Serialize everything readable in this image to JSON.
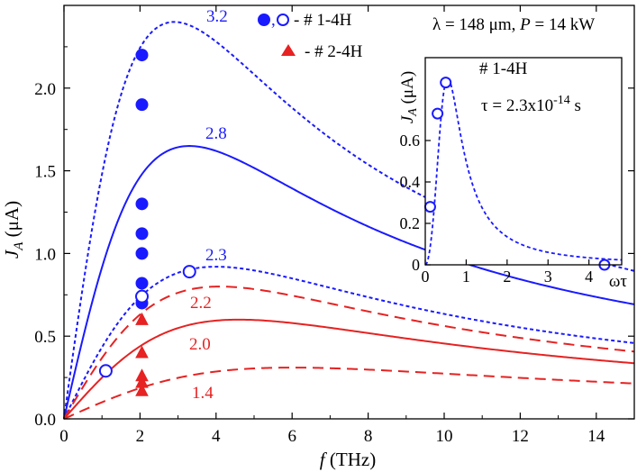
{
  "chart_data": [
    {
      "type": "line",
      "xlabel_italic": "f",
      "xlabel_rest": " (THz)",
      "ylabel_main": "J",
      "ylabel_sub": "A",
      "ylabel_unit": " (μA)",
      "xlim": [
        0,
        15
      ],
      "ylim": [
        0,
        2.5
      ],
      "xticks": [
        0,
        2,
        4,
        6,
        8,
        10,
        12,
        14
      ],
      "yticks": [
        0.0,
        0.5,
        1.0,
        1.5,
        2.0
      ],
      "ytick_labels": [
        "0.0",
        "0.5",
        "1.0",
        "1.5",
        "2.0"
      ],
      "condition_prefix": "λ = 148 μm, ",
      "condition_power_symbol": "P",
      "condition_power_value": " = 14 kW",
      "legend": [
        {
          "marker": "filled-circle-and-open-circle",
          "label": "- # 1-4H",
          "color": "#1a1aff"
        },
        {
          "marker": "filled-triangle",
          "label": "- # 2-4H",
          "color": "#e62222"
        }
      ],
      "curves": [
        {
          "label": "3.2",
          "peak_x": 2.9,
          "peak_y": 2.4,
          "style": "dotted",
          "color": "#1a1aff"
        },
        {
          "label": "2.8",
          "peak_x": 3.3,
          "peak_y": 1.65,
          "style": "solid",
          "color": "#1a1aff"
        },
        {
          "label": "2.3",
          "peak_x": 4.0,
          "peak_y": 0.92,
          "style": "dotted",
          "color": "#1a1aff"
        },
        {
          "label": "2.2",
          "peak_x": 4.1,
          "peak_y": 0.8,
          "style": "dashed",
          "color": "#e62222"
        },
        {
          "label": "2.0",
          "peak_x": 4.6,
          "peak_y": 0.6,
          "style": "solid",
          "color": "#e62222"
        },
        {
          "label": "1.4",
          "peak_x": 6.0,
          "peak_y": 0.31,
          "style": "dashed",
          "color": "#e62222"
        }
      ],
      "series": [
        {
          "name": "# 1-4H filled",
          "marker": "filled-circle",
          "color": "#1a1aff",
          "points": [
            [
              2.05,
              2.2
            ],
            [
              2.05,
              1.9
            ],
            [
              2.05,
              1.3
            ],
            [
              2.05,
              1.12
            ],
            [
              2.05,
              1.0
            ],
            [
              2.05,
              0.82
            ],
            [
              2.05,
              0.7
            ]
          ]
        },
        {
          "name": "# 1-4H open",
          "marker": "open-circle",
          "color": "#1a1aff",
          "points": [
            [
              1.1,
              0.29
            ],
            [
              2.05,
              0.74
            ],
            [
              3.3,
              0.89
            ]
          ]
        },
        {
          "name": "# 2-4H",
          "marker": "filled-triangle",
          "color": "#e62222",
          "points": [
            [
              2.05,
              0.6
            ],
            [
              2.05,
              0.4
            ],
            [
              2.05,
              0.26
            ],
            [
              2.05,
              0.22
            ],
            [
              2.05,
              0.17
            ]
          ]
        }
      ]
    },
    {
      "type": "line",
      "panel": "inset",
      "title": "# 1-4H",
      "tau_prefix": "τ = 2.3x10",
      "tau_exponent": "-14",
      "tau_unit": " s",
      "xlabel": "ωτ",
      "ylabel_main": "J",
      "ylabel_sub": "A",
      "ylabel_unit": " (μA)",
      "xlim": [
        0,
        4.8
      ],
      "ylim": [
        0,
        1.0
      ],
      "xticks": [
        0,
        1,
        2,
        3,
        4
      ],
      "yticks": [
        0,
        0.2,
        0.4,
        0.6
      ],
      "ytick_labels": [
        "0",
        "0.2",
        "0.4",
        "0.6"
      ],
      "curve": {
        "peak_x": 0.55,
        "peak_y": 0.9,
        "style": "dotted",
        "color": "#1a1aff"
      },
      "series": [
        {
          "name": "# 1-4H open",
          "marker": "open-circle",
          "color": "#1a1aff",
          "points": [
            [
              0.12,
              0.28
            ],
            [
              0.3,
              0.73
            ],
            [
              0.5,
              0.88
            ],
            [
              4.38,
              0.0
            ]
          ]
        }
      ]
    }
  ]
}
